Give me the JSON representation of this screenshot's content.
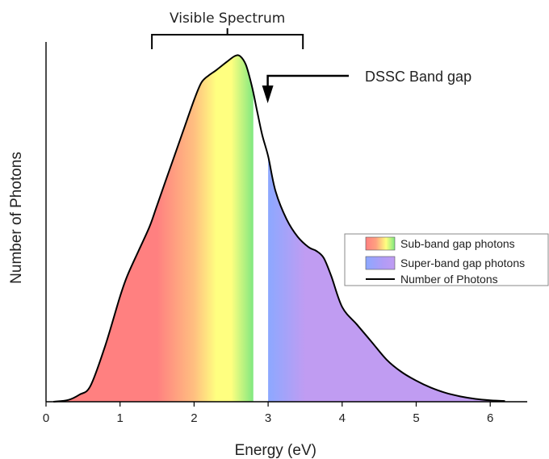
{
  "chart_data": {
    "type": "area",
    "xlabel": "Energy (eV)",
    "ylabel": "Number of Photons",
    "xlim": [
      0,
      6.5
    ],
    "ylim": [
      0,
      1.0
    ],
    "xticks": [
      "0",
      "1",
      "2",
      "3",
      "4",
      "5",
      "6"
    ],
    "y_tick_labels": false,
    "series": [
      {
        "name": "Number of Photons",
        "x": [
          0.1,
          0.3,
          0.45,
          0.6,
          0.8,
          1.0,
          1.1,
          1.25,
          1.4,
          1.5,
          1.7,
          1.85,
          2.0,
          2.1,
          2.2,
          2.3,
          2.45,
          2.55,
          2.62,
          2.7,
          2.78,
          2.85,
          2.92,
          3.0,
          3.1,
          3.25,
          3.4,
          3.55,
          3.65,
          3.75,
          3.85,
          4.0,
          4.2,
          4.4,
          4.6,
          4.8,
          5.0,
          5.2,
          5.4,
          5.6,
          5.8,
          6.0,
          6.2
        ],
        "y": [
          0.0,
          0.005,
          0.02,
          0.045,
          0.16,
          0.3,
          0.36,
          0.43,
          0.5,
          0.56,
          0.68,
          0.77,
          0.86,
          0.91,
          0.93,
          0.945,
          0.97,
          0.985,
          0.985,
          0.96,
          0.9,
          0.83,
          0.76,
          0.7,
          0.6,
          0.52,
          0.47,
          0.44,
          0.43,
          0.41,
          0.36,
          0.27,
          0.22,
          0.17,
          0.12,
          0.085,
          0.06,
          0.04,
          0.025,
          0.015,
          0.008,
          0.004,
          0.002
        ]
      }
    ],
    "band_gap_eV": 3.0,
    "gap_region_eV": [
      2.8,
      3.0
    ],
    "visible_spectrum_eV": [
      1.43,
      3.47
    ],
    "annotations": {
      "visible_spectrum": "Visible Spectrum",
      "band_gap": "DSSC Band gap"
    },
    "legend": {
      "placement": "right",
      "entries": [
        "Sub-band gap photons",
        "Super-band gap photons",
        "Number of Photons"
      ]
    },
    "colors": {
      "red": "#ff8080",
      "orange": "#ffbf80",
      "yellow": "#ffff80",
      "green": "#80e880",
      "blue": "#8ca8ff",
      "purple": "#c09cf2",
      "curve": "#000000"
    }
  }
}
